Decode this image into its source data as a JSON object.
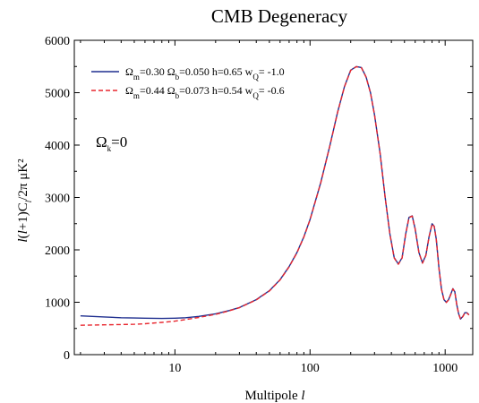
{
  "chart_data": {
    "type": "line",
    "title": "CMB Degeneracy",
    "xlabel": "Multipole l",
    "ylabel": "l(l+1)C_l/2π μK²",
    "x_scale": "log",
    "xlim": [
      1.8,
      1600
    ],
    "ylim": [
      0,
      6000
    ],
    "x_ticks": [
      10,
      100,
      1000
    ],
    "x_tick_labels": [
      "10",
      "100",
      "1000"
    ],
    "y_ticks": [
      0,
      1000,
      2000,
      3000,
      4000,
      5000,
      6000
    ],
    "y_tick_labels": [
      "0",
      "1000",
      "2000",
      "3000",
      "4000",
      "5000",
      "6000"
    ],
    "grid": false,
    "legend_position": "top-left",
    "annotation": "Ω_k=0",
    "series": [
      {
        "name": "Ω_m=0.30 Ω_b=0.050 h=0.65 w_Q= -1.0",
        "color": "#1f2f8f",
        "style": "solid",
        "x": [
          2,
          3,
          4,
          5,
          6,
          8,
          10,
          12,
          15,
          20,
          25,
          30,
          40,
          50,
          60,
          70,
          80,
          90,
          100,
          120,
          140,
          160,
          180,
          200,
          220,
          240,
          260,
          280,
          300,
          330,
          360,
          390,
          420,
          450,
          480,
          510,
          540,
          570,
          600,
          640,
          680,
          720,
          760,
          800,
          830,
          860,
          900,
          940,
          980,
          1020,
          1060,
          1100,
          1140,
          1180,
          1220,
          1260,
          1300,
          1350,
          1400,
          1450,
          1500
        ],
        "y": [
          740,
          720,
          705,
          700,
          695,
          690,
          695,
          705,
          730,
          780,
          840,
          900,
          1050,
          1220,
          1430,
          1680,
          1950,
          2250,
          2580,
          3280,
          3980,
          4630,
          5120,
          5430,
          5500,
          5480,
          5300,
          5000,
          4580,
          3850,
          3000,
          2300,
          1850,
          1730,
          1850,
          2300,
          2620,
          2650,
          2400,
          1950,
          1750,
          1900,
          2250,
          2500,
          2450,
          2200,
          1650,
          1250,
          1050,
          1000,
          1050,
          1150,
          1260,
          1200,
          950,
          780,
          680,
          730,
          800,
          800,
          760
        ]
      },
      {
        "name": "Ω_m=0.44 Ω_b=0.073 h=0.54 w_Q= -0.6",
        "color": "#e8262e",
        "style": "dashed",
        "x": [
          2,
          3,
          4,
          5,
          6,
          8,
          10,
          12,
          15,
          20,
          25,
          30,
          40,
          50,
          60,
          70,
          80,
          90,
          100,
          120,
          140,
          160,
          180,
          200,
          220,
          240,
          260,
          280,
          300,
          330,
          360,
          390,
          420,
          450,
          480,
          510,
          540,
          570,
          600,
          640,
          680,
          720,
          760,
          800,
          830,
          860,
          900,
          940,
          980,
          1020,
          1060,
          1100,
          1140,
          1180,
          1220,
          1260,
          1300,
          1350,
          1400,
          1450,
          1500
        ],
        "y": [
          560,
          570,
          575,
          580,
          590,
          615,
          640,
          670,
          710,
          770,
          835,
          895,
          1045,
          1215,
          1425,
          1675,
          1945,
          2245,
          2575,
          3275,
          3975,
          4625,
          5115,
          5425,
          5495,
          5475,
          5295,
          4995,
          4575,
          3845,
          2995,
          2295,
          1845,
          1725,
          1845,
          2295,
          2615,
          2645,
          2395,
          1945,
          1745,
          1895,
          2245,
          2495,
          2445,
          2195,
          1645,
          1245,
          1045,
          995,
          1045,
          1145,
          1255,
          1195,
          945,
          775,
          675,
          725,
          795,
          795,
          755
        ]
      }
    ]
  }
}
